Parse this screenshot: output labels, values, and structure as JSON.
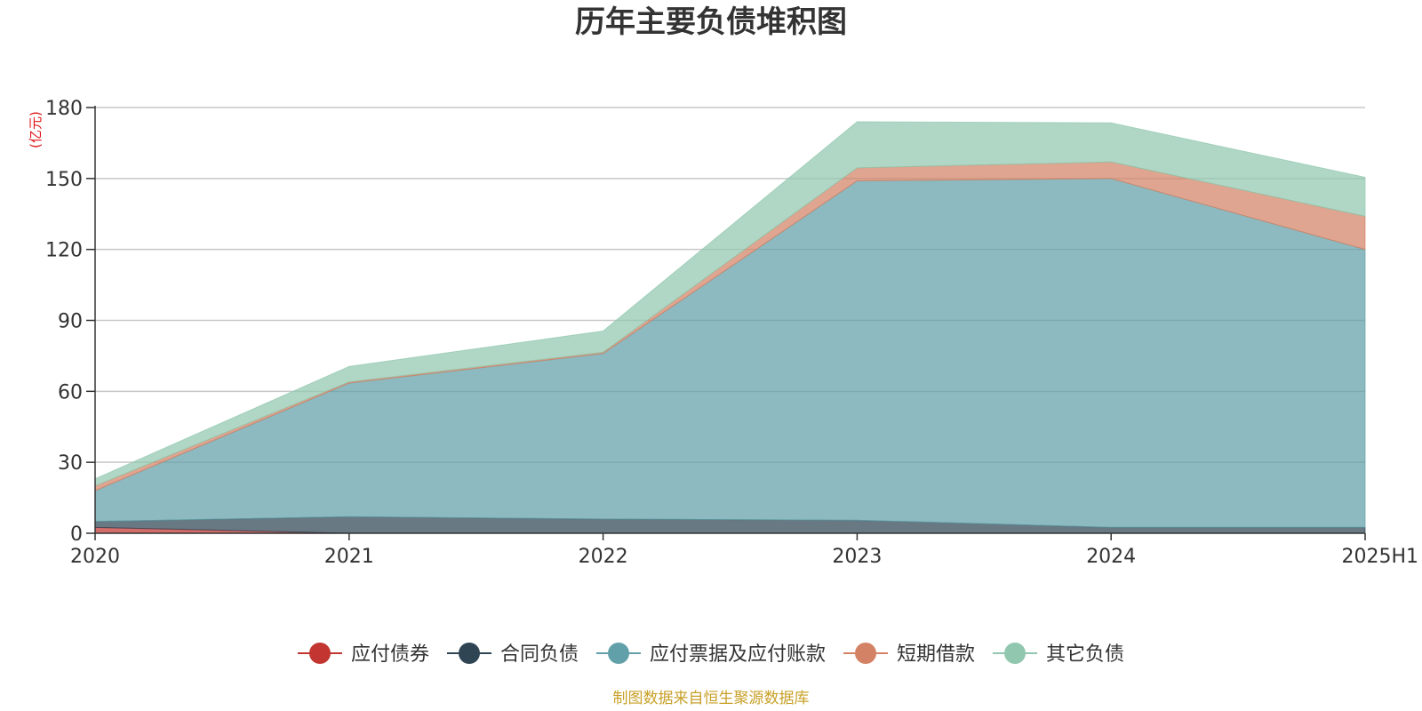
{
  "chart_data": {
    "type": "area",
    "title": "历年主要负债堆积图",
    "ylabel": "(亿元)",
    "xlabel": "",
    "categories": [
      "2020",
      "2021",
      "2022",
      "2023",
      "2024",
      "2025H1"
    ],
    "ylim": [
      0,
      180
    ],
    "yticks": [
      0,
      30,
      60,
      90,
      120,
      150,
      180
    ],
    "grid": true,
    "stacked": true,
    "legend_position": "bottom",
    "series": [
      {
        "name": "应付债券",
        "color": "#c23531",
        "values": [
          2.5,
          0,
          0,
          0,
          0,
          0
        ]
      },
      {
        "name": "合同负债",
        "color": "#2f4554",
        "values": [
          2.5,
          7,
          6,
          5.5,
          2.5,
          2.5
        ]
      },
      {
        "name": "应付票据及应付账款",
        "color": "#61a0a8",
        "values": [
          13,
          56.5,
          70,
          143.5,
          147.5,
          117.5
        ]
      },
      {
        "name": "短期借款",
        "color": "#d48265",
        "values": [
          2,
          0.5,
          0.5,
          5.5,
          7,
          14
        ]
      },
      {
        "name": "其它负债",
        "color": "#91c7ae",
        "values": [
          3,
          6.5,
          9,
          19.5,
          16.5,
          16.5
        ]
      }
    ],
    "source": "制图数据来自恒生聚源数据库"
  }
}
